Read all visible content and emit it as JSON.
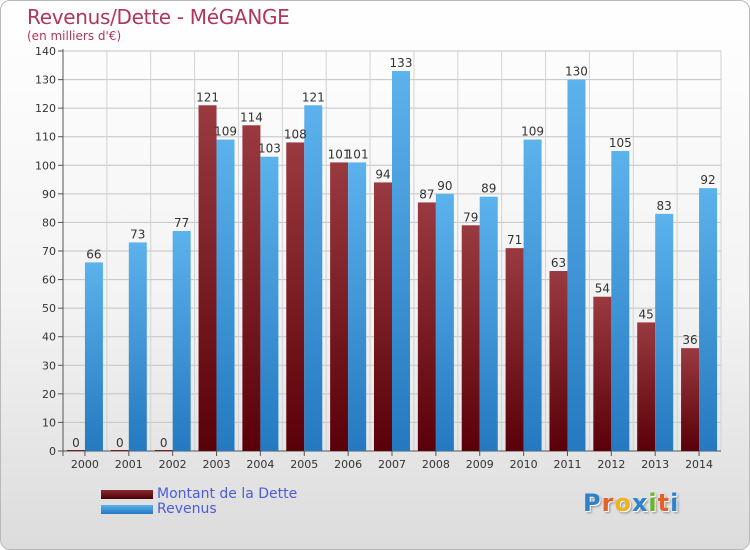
{
  "title": "Revenus/Dette - MéGANGE",
  "subtitle": "(en milliers d'€)",
  "colors": {
    "dette": "#7a1f26",
    "revenus": "#3a96dc",
    "text_accent": "#b0365b",
    "legend_text": "#4c5cd6"
  },
  "legend": {
    "items": [
      {
        "label": "Montant de la Dette",
        "color": "#6b0d14"
      },
      {
        "label": "Revenus",
        "color": "#3a96dc"
      }
    ]
  },
  "logo": {
    "letters": [
      "P",
      "r",
      "o",
      "x",
      "i",
      "t",
      "i"
    ],
    "colors": [
      "#2f82c9",
      "#e2612b",
      "#f0b31b",
      "#2f82c9",
      "#6ab42d",
      "#e2612b",
      "#2f82c9"
    ]
  },
  "chart_data": {
    "type": "bar",
    "categories": [
      "2000",
      "2001",
      "2002",
      "2003",
      "2004",
      "2005",
      "2006",
      "2007",
      "2008",
      "2009",
      "2010",
      "2011",
      "2012",
      "2013",
      "2014"
    ],
    "series": [
      {
        "name": "Montant de la Dette",
        "values": [
          0,
          0,
          0,
          121,
          114,
          108,
          101,
          94,
          87,
          79,
          71,
          63,
          54,
          45,
          36
        ]
      },
      {
        "name": "Revenus",
        "values": [
          66,
          73,
          77,
          109,
          103,
          121,
          101,
          133,
          90,
          89,
          109,
          130,
          105,
          83,
          92
        ]
      }
    ],
    "data_labels": [
      [
        "0",
        "0",
        "0",
        "121",
        "114",
        "108",
        "101",
        "94",
        "87",
        "79",
        "71",
        "63",
        "54",
        "45",
        "36"
      ],
      [
        "66",
        "73",
        "77",
        "109",
        "103",
        "121",
        "101",
        "133",
        "90",
        "89",
        "109",
        "130",
        "105",
        "83",
        "92"
      ]
    ],
    "ylim": [
      0,
      140
    ],
    "yticks": [
      "0",
      "10",
      "20",
      "30",
      "40",
      "50",
      "60",
      "70",
      "80",
      "90",
      "100",
      "110",
      "120",
      "130",
      "140"
    ],
    "grid": true,
    "legend_position": "bottom-left"
  }
}
